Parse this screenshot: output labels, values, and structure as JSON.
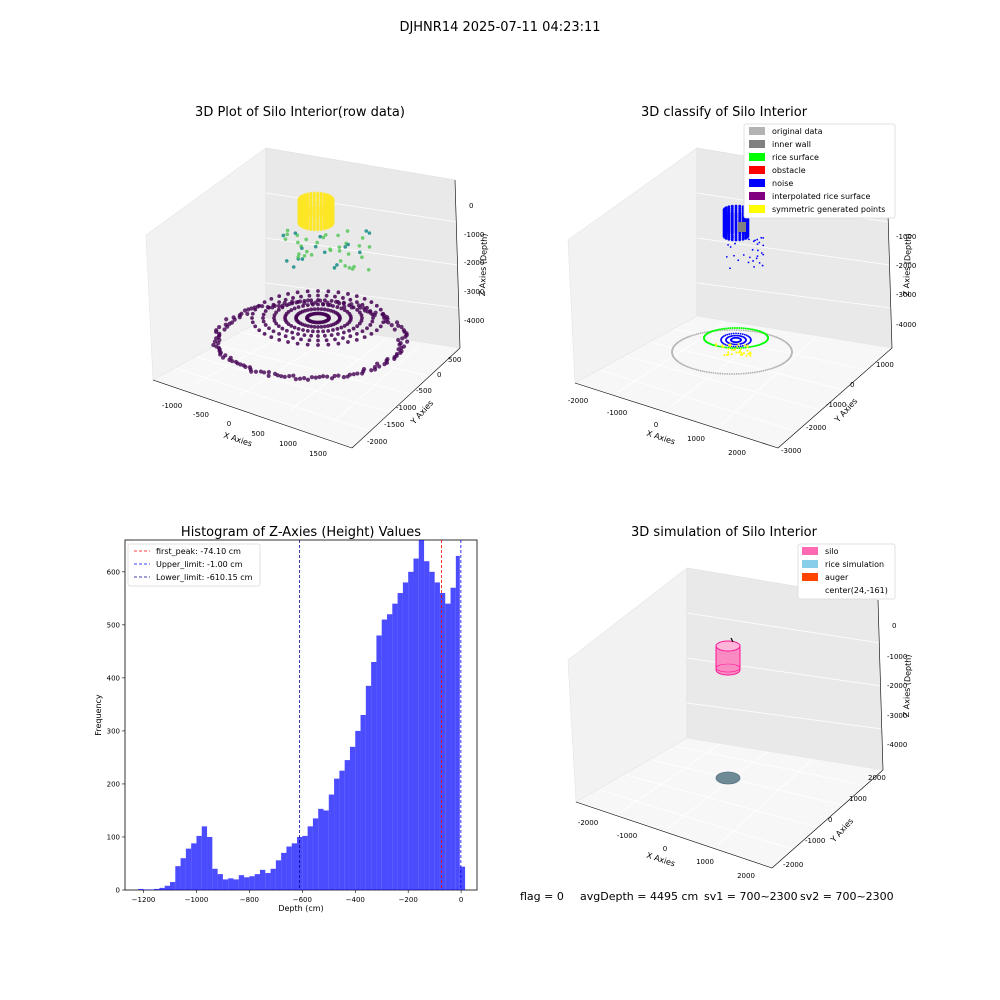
{
  "figure": {
    "suptitle": "DJHNR14 2025-07-11 04:23:11",
    "status": {
      "flag": "flag = 0",
      "avg_depth": "avgDepth = 4495 cm",
      "sv1": "sv1 = 700~2300",
      "sv2": "sv2 = 700~2300"
    }
  },
  "chart_data": [
    {
      "type": "scatter3d",
      "title": "3D Plot of Silo Interior(row data)",
      "xlabel": "X Axies",
      "ylabel": "Y Axies",
      "zlabel": "Z Axies (Depth)",
      "x_ticks": [
        "-1000",
        "-500",
        "0",
        "500",
        "1000",
        "1500"
      ],
      "y_ticks": [
        "500",
        "0",
        "-500",
        "-1000",
        "-1500",
        "-2000"
      ],
      "z_ticks": [
        "0",
        "-1000",
        "-2000",
        "-3000",
        "-4000"
      ],
      "xlim": [
        -1300,
        1800
      ],
      "ylim": [
        -2200,
        800
      ],
      "zlim": [
        -4600,
        300
      ],
      "colormap": "viridis",
      "colors": {
        "low": "#440154",
        "mid": "#21918c",
        "mid2": "#5ec962",
        "high": "#fde725"
      }
    },
    {
      "type": "scatter3d",
      "title": "3D classify of Silo Interior",
      "xlabel": "X Axies",
      "ylabel": "Y Axies",
      "zlabel": "Z Axies (Depth)",
      "x_ticks": [
        "-2000",
        "-1000",
        "0",
        "1000",
        "2000"
      ],
      "y_ticks": [
        "1000",
        "0",
        "-1000",
        "-2000",
        "-3000"
      ],
      "z_ticks": [
        "-1000",
        "-2000",
        "-3000",
        "-4000"
      ],
      "xlim": [
        -2400,
        2400
      ],
      "ylim": [
        -3200,
        1400
      ],
      "zlim": [
        -4600,
        300
      ],
      "legend_position": "top-right",
      "legend": [
        {
          "label": "original data",
          "color": "#b3b3b3"
        },
        {
          "label": "inner wall",
          "color": "#808080"
        },
        {
          "label": "rice surface",
          "color": "#00ff00"
        },
        {
          "label": "obstacle",
          "color": "#ff0000"
        },
        {
          "label": "noise",
          "color": "#0000ff"
        },
        {
          "label": "interpolated rice surface",
          "color": "#800080"
        },
        {
          "label": "symmetric generated points",
          "color": "#ffff00"
        }
      ]
    },
    {
      "type": "bar",
      "title": "Histogram of Z-Axies (Height) Values",
      "xlabel": "Depth (cm)",
      "ylabel": "Frequency",
      "xlim": [
        -1270,
        60
      ],
      "ylim": [
        0,
        660
      ],
      "x_ticks": [
        -1200,
        -1000,
        -800,
        -600,
        -400,
        -200,
        0
      ],
      "y_ticks": [
        0,
        100,
        200,
        300,
        400,
        500,
        600
      ],
      "bar_color": "#0000ff",
      "bin_width": 20,
      "bin_left_edges": [
        -1220,
        -1200,
        -1180,
        -1160,
        -1140,
        -1120,
        -1100,
        -1080,
        -1060,
        -1040,
        -1020,
        -1000,
        -980,
        -960,
        -940,
        -920,
        -900,
        -880,
        -860,
        -840,
        -820,
        -800,
        -780,
        -760,
        -740,
        -720,
        -700,
        -680,
        -660,
        -640,
        -620,
        -600,
        -580,
        -560,
        -540,
        -520,
        -500,
        -480,
        -460,
        -440,
        -420,
        -400,
        -380,
        -360,
        -340,
        -320,
        -300,
        -280,
        -260,
        -240,
        -220,
        -200,
        -180,
        -160,
        -140,
        -120,
        -100,
        -80,
        -60,
        -40,
        -20,
        -5
      ],
      "values": [
        2,
        1,
        1,
        2,
        4,
        8,
        15,
        45,
        60,
        78,
        88,
        102,
        120,
        100,
        40,
        30,
        20,
        22,
        20,
        28,
        24,
        26,
        30,
        38,
        32,
        40,
        56,
        70,
        82,
        88,
        100,
        102,
        120,
        135,
        153,
        150,
        180,
        210,
        225,
        245,
        270,
        300,
        330,
        385,
        430,
        480,
        510,
        520,
        540,
        560,
        580,
        600,
        625,
        660,
        620,
        600,
        580,
        560,
        540,
        570,
        630,
        44
      ],
      "lines": [
        {
          "label": "first_peak: -74.10 cm",
          "x": -74.1,
          "color": "#ff0000"
        },
        {
          "label": "Upper_limit: -1.00 cm",
          "x": -1.0,
          "color": "#0000ff"
        },
        {
          "label": "Lower_limit: -610.15 cm",
          "x": -610.15,
          "color": "#00008b"
        }
      ],
      "legend_position": "top-left"
    },
    {
      "type": "scatter3d",
      "title": "3D simulation of Silo Interior",
      "xlabel": "X Axies",
      "ylabel": "Y Axies",
      "zlabel": "Z Axies (Depth)",
      "x_ticks": [
        "-2000",
        "-1000",
        "0",
        "1000",
        "2000"
      ],
      "y_ticks": [
        "2000",
        "1000",
        "0",
        "-1000",
        "-2000"
      ],
      "z_ticks": [
        "0",
        "-1000",
        "-2000",
        "-3000",
        "-4000"
      ],
      "xlim": [
        -2400,
        2400
      ],
      "ylim": [
        -2400,
        2400
      ],
      "zlim": [
        -4600,
        300
      ],
      "legend_position": "top-right",
      "legend": [
        {
          "label": "silo",
          "color": "#ff69b4"
        },
        {
          "label": "rice simulation",
          "color": "#87ceeb"
        },
        {
          "label": "auger",
          "color": "#ff4500"
        },
        {
          "label": "center(24,-161)",
          "color": ""
        }
      ]
    }
  ]
}
